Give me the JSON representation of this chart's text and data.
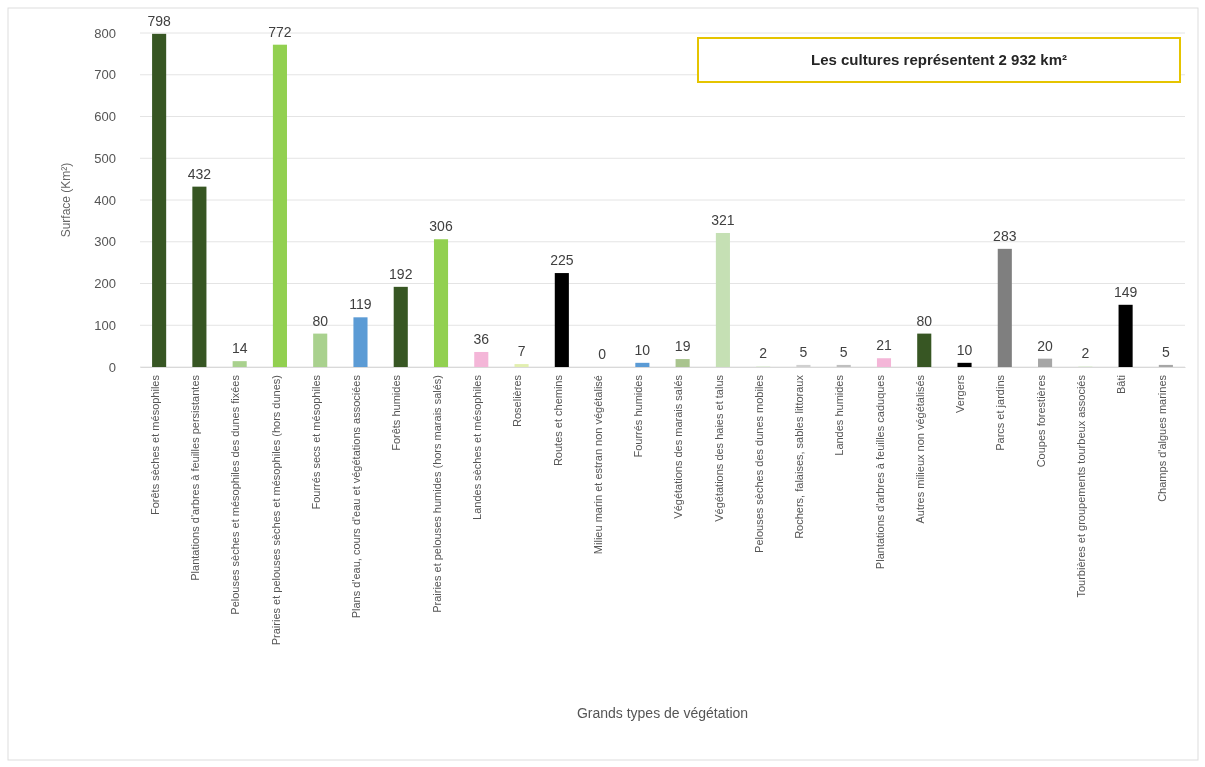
{
  "chart_data": {
    "type": "bar",
    "xlabel": "Grands types de végétation",
    "ylabel": "Surface (Km²)",
    "categories": [
      "Forêts sèches et mésophiles",
      "Plantations d'arbres à feuilles persistantes",
      "Pelouses sèches et mésophiles des dunes fixées",
      "Prairies et pelouses sèches et mésophiles (hors dunes)",
      "Fourrés secs et mésophiles",
      "Plans d'eau, cours d'eau et végétations associées",
      "Forêts humides",
      "Prairies et pelouses humides (hors marais salés)",
      "Landes sèches et mésophiles",
      "Roselières",
      "Routes et chemins",
      "Milieu marin et estran non végétalisé",
      "Fourrés humides",
      "Végétations des marais salés",
      "Végétations des haies et talus",
      "Pelouses sèches des dunes mobiles",
      "Rochers, falaises, sables littoraux",
      "Landes humides",
      "Plantations d'arbres à feuilles caduques",
      "Autres milieux non végétalisés",
      "Vergers",
      "Parcs et jardins",
      "Coupes forestières",
      "Tourbières et groupements tourbeux associés",
      "Bâti",
      "Champs d'algues marines"
    ],
    "values": [
      798,
      432,
      14,
      772,
      80,
      119,
      192,
      306,
      36,
      7,
      225,
      0,
      10,
      19,
      321,
      2,
      5,
      5,
      21,
      80,
      10,
      283,
      20,
      2,
      149,
      5
    ],
    "colors": [
      "#375623",
      "#375623",
      "#a9d18e",
      "#92d050",
      "#a9d18e",
      "#5b9bd5",
      "#375623",
      "#92d050",
      "#f4b6d8",
      "#e2efb0",
      "#000000",
      "#d9d9d9",
      "#5b9bd5",
      "#a9c48e",
      "#c5e0b4",
      "#e2efda",
      "#d0d0d0",
      "#bfbfbf",
      "#f4b6d8",
      "#375623",
      "#000000",
      "#7f7f7f",
      "#a6a6a6",
      "#e2efda",
      "#000000",
      "#a6a6a6"
    ],
    "ylim": [
      0,
      800
    ],
    "yticks": [
      0,
      100,
      200,
      300,
      400,
      500,
      600,
      700,
      800
    ],
    "grid": "y",
    "data_labels": true,
    "annotations": [
      "Les cultures représentent 2 932 km²"
    ]
  }
}
